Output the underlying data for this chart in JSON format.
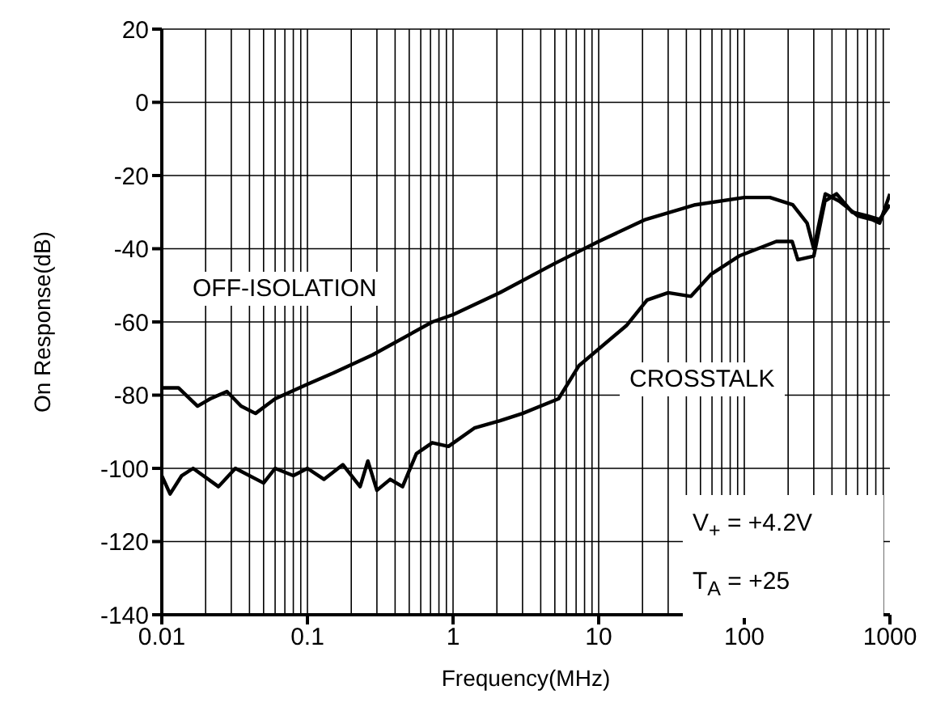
{
  "chart_data": {
    "type": "line",
    "xlabel": "Frequency(MHz)",
    "ylabel": "On Response(dB)",
    "log": "x",
    "grid": true,
    "marker": "none",
    "line_style": "solid",
    "xlim": [
      0.01,
      1000
    ],
    "xticks": [
      0.01,
      0.1,
      1,
      10,
      100,
      1000
    ],
    "ylim": [
      -140,
      20
    ],
    "yticks": [
      -140,
      -120,
      -100,
      -80,
      -60,
      -40,
      -20,
      0,
      20
    ],
    "series": [
      {
        "name": "OFF-ISOLATION",
        "color": "#000000",
        "x": [
          0.01,
          0.013,
          0.0176,
          0.0215,
          0.028,
          0.035,
          0.044,
          0.06,
          0.1,
          0.15,
          0.28,
          0.72,
          1,
          2.1,
          5,
          10,
          21,
          46,
          100,
          150,
          215,
          270,
          300,
          360,
          450,
          600,
          750,
          850,
          1000
        ],
        "values": [
          -78,
          -78,
          -83,
          -81,
          -79,
          -83,
          -85,
          -81,
          -77,
          -74,
          -69,
          -60,
          -58,
          -52,
          -44,
          -38,
          -32,
          -28,
          -26,
          -26,
          -28,
          -33,
          -40,
          -25,
          -27,
          -31,
          -32,
          -33,
          -25
        ]
      },
      {
        "name": "CROSSTALK",
        "color": "#000000",
        "x": [
          0.01,
          0.0114,
          0.0137,
          0.0164,
          0.0245,
          0.032,
          0.05,
          0.06,
          0.08,
          0.1,
          0.13,
          0.175,
          0.23,
          0.26,
          0.3,
          0.37,
          0.45,
          0.56,
          0.72,
          0.93,
          1.4,
          2.1,
          3,
          5.3,
          7.3,
          15.5,
          21.5,
          30,
          43,
          59,
          92,
          166,
          213,
          233,
          300,
          358,
          430,
          550,
          700,
          850,
          1000
        ],
        "values": [
          -102,
          -107,
          -102,
          -100,
          -105,
          -100,
          -104,
          -100,
          -102,
          -100,
          -103,
          -99,
          -105,
          -98,
          -106,
          -103,
          -105,
          -96,
          -93,
          -94,
          -89,
          -87,
          -85,
          -81,
          -72,
          -61,
          -54,
          -52,
          -53,
          -47,
          -42,
          -38,
          -38,
          -43,
          -42,
          -27,
          -25,
          -30,
          -31,
          -32,
          -28
        ]
      }
    ],
    "annotations": [
      "V$_{+}$ = +4.2V",
      "T$_{A}$ = +25"
    ]
  }
}
